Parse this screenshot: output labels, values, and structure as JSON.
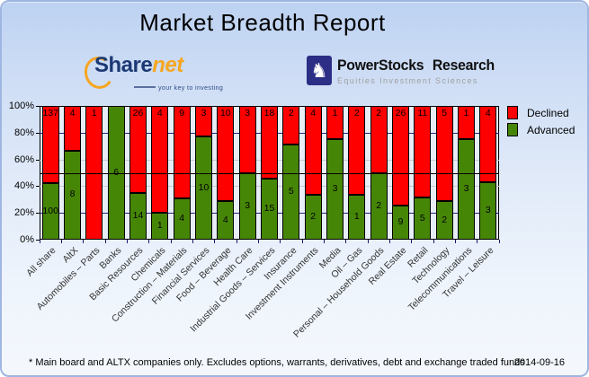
{
  "header": {
    "title": "Market Breadth Report"
  },
  "logos": {
    "sharenet": {
      "icon": "swoosh-arc-icon",
      "name_part1": "Share",
      "name_part2": "net",
      "tagline": "your key to investing"
    },
    "powerstocks": {
      "icon": "chess-knight-icon",
      "knight_glyph": "♞",
      "name": "PowerStocks Research",
      "tagline": "Equities Investment Sciences"
    }
  },
  "chart_data": {
    "type": "bar",
    "stacked": true,
    "orientation": "vertical",
    "value_axis_is_percent_share": true,
    "categories": [
      "All share",
      "AltX",
      "Automobiles – Parts",
      "Banks",
      "Basic Resources",
      "Chemicals",
      "Construction – Materials",
      "Financial Services",
      "Food – Beverage",
      "Health Care",
      "Industrial Goods – Services",
      "Insurance",
      "Investment Instruments",
      "Media",
      "Oil – Gas",
      "Personal – Household Goods",
      "Real Estate",
      "Retail",
      "Technology",
      "Telecommunications",
      "Travel – Leisure"
    ],
    "series": [
      {
        "name": "Declined",
        "color": "#fe0000",
        "counts": [
          137,
          4,
          1,
          0,
          26,
          4,
          9,
          3,
          10,
          3,
          18,
          2,
          4,
          1,
          2,
          2,
          26,
          11,
          5,
          1,
          4
        ]
      },
      {
        "name": "Advanced",
        "color": "#468606",
        "counts": [
          100,
          8,
          0,
          6,
          14,
          1,
          4,
          10,
          4,
          3,
          15,
          5,
          2,
          3,
          1,
          2,
          9,
          5,
          2,
          3,
          3
        ]
      }
    ],
    "yticks": [
      "100%",
      "80%",
      "60%",
      "40%",
      "20%",
      "0%"
    ],
    "ylim": [
      0,
      100
    ],
    "reference_line_pct": 50,
    "legend_position": "top-right",
    "grid": {
      "navy_lines_pct": [
        20,
        80
      ],
      "gray_lines_pct": [
        40,
        60
      ]
    },
    "colors": {
      "plot_bg": "#e8eef7",
      "navy_grid": "#23237d",
      "gray_grid": "#c9c9c9",
      "reference_line": "#000000",
      "bar_outline": "#000000",
      "tick": "#1a1a6e"
    }
  },
  "footer": {
    "note": "* Main board and ALTX companies only. Excludes options, warrants, derivatives, debt and exchange traded funds",
    "date": "2014-09-16"
  }
}
